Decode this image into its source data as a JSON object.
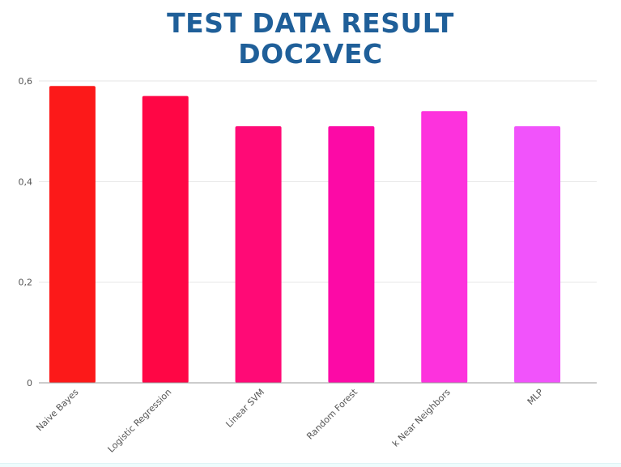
{
  "chart_data": {
    "type": "bar",
    "title_line1": "TEST DATA RESULT",
    "title_line2": "DOC2VEC",
    "categories": [
      "Naive Bayes",
      "Logistic Regression",
      "Linear SVM",
      "Random Forest",
      "k Near Neighbors",
      "MLP"
    ],
    "values": [
      0.59,
      0.57,
      0.51,
      0.51,
      0.54,
      0.51
    ],
    "colors": [
      "#fc1919",
      "#ff0645",
      "#ff0a76",
      "#fc0aa6",
      "#fd32dd",
      "#f153fb"
    ],
    "ylim": [
      0,
      0.6
    ],
    "yticks": [
      0,
      0.2,
      0.4,
      0.6
    ],
    "ytick_labels": [
      "0",
      "0,2",
      "0,4",
      "0,6"
    ],
    "grid": true,
    "xlabel": "",
    "ylabel": ""
  },
  "colors": {
    "title": "#1f5f99",
    "grid": "#e6e6e6",
    "axis": "#9a9a9a"
  }
}
